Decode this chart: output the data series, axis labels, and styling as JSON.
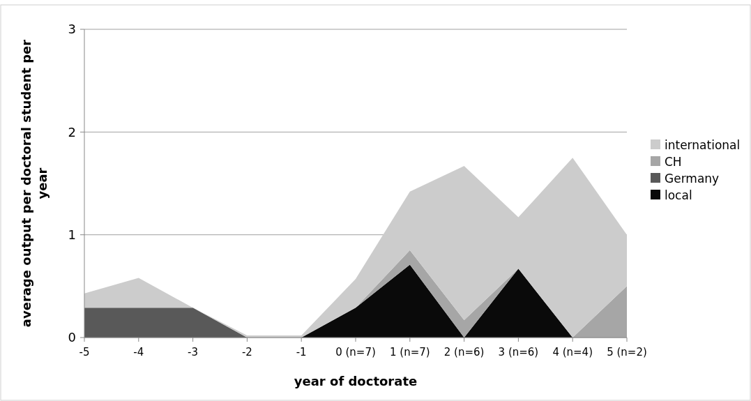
{
  "chart_data": {
    "type": "area",
    "stacked": true,
    "xlabel": "year of doctorate",
    "ylabel": "average output per doctoral student per year",
    "categories": [
      "-5",
      "-4",
      "-3",
      "-2",
      "-1",
      "0 (n=7)",
      "1 (n=7)",
      "2 (n=6)",
      "3 (n=6)",
      "4 (n=4)",
      "5 (n=2)"
    ],
    "series": [
      {
        "name": "local",
        "color": "#0a0a0a",
        "values": [
          null,
          null,
          null,
          null,
          0,
          0.29,
          0.71,
          0,
          0.67,
          0,
          null
        ]
      },
      {
        "name": "Germany",
        "color": "#595959",
        "values": [
          0.29,
          0.29,
          0.29,
          0,
          null,
          null,
          null,
          null,
          null,
          null,
          null
        ]
      },
      {
        "name": "CH",
        "color": "#a6a6a6",
        "values": [
          null,
          null,
          null,
          null,
          null,
          0,
          0.14,
          0.17,
          0,
          0,
          0.5
        ]
      },
      {
        "name": "international",
        "color": "#cccccc",
        "values": [
          0.14,
          0.29,
          0,
          0.02,
          0.02,
          0.28,
          0.57,
          1.5,
          0.5,
          1.75,
          0.5
        ]
      }
    ],
    "ylim": [
      0,
      3
    ],
    "yticks": [
      0,
      1,
      2,
      3
    ],
    "grid": "y",
    "legend": "right"
  }
}
